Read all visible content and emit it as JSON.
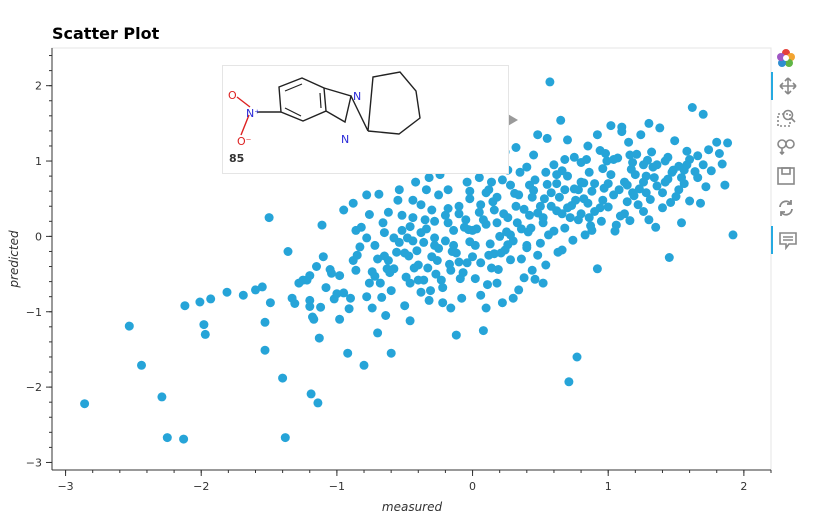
{
  "chart_data": {
    "type": "scatter",
    "title": "Scatter Plot",
    "xlabel": "measured",
    "ylabel": "predicted",
    "xlim": [
      -3.1,
      2.2
    ],
    "ylim": [
      -3.1,
      2.5
    ],
    "x_ticks": [
      -3,
      -2,
      -1,
      0,
      1,
      2
    ],
    "y_ticks": [
      -3,
      -2,
      -1,
      0,
      1,
      2
    ],
    "x_tick_labels": [
      "−3",
      "−2",
      "−1",
      "0",
      "1",
      "2"
    ],
    "y_tick_labels": [
      "−3",
      "−2",
      "−1",
      "0",
      "1",
      "2"
    ],
    "point_color": "#26a4d8",
    "grid": false,
    "points": [
      [
        -2.86,
        -2.22
      ],
      [
        -2.53,
        -1.19
      ],
      [
        -2.44,
        -1.71
      ],
      [
        -2.29,
        -2.13
      ],
      [
        -2.25,
        -2.67
      ],
      [
        -2.13,
        -2.69
      ],
      [
        -2.12,
        -0.92
      ],
      [
        -2.01,
        -0.87
      ],
      [
        -1.98,
        -1.17
      ],
      [
        -1.97,
        -1.3
      ],
      [
        -1.93,
        -0.83
      ],
      [
        -1.81,
        -0.74
      ],
      [
        -1.69,
        -0.78
      ],
      [
        -1.6,
        -0.71
      ],
      [
        -1.55,
        -0.67
      ],
      [
        -1.53,
        -1.14
      ],
      [
        -1.53,
        -1.51
      ],
      [
        -1.5,
        0.25
      ],
      [
        -1.49,
        -0.88
      ],
      [
        -1.4,
        -1.88
      ],
      [
        -1.38,
        -2.67
      ],
      [
        -1.36,
        -0.2
      ],
      [
        -1.33,
        -0.82
      ],
      [
        -1.31,
        -0.89
      ],
      [
        -1.25,
        -0.58
      ],
      [
        -1.22,
        -0.58
      ],
      [
        -1.2,
        -0.93
      ],
      [
        -1.2,
        -0.52
      ],
      [
        -1.19,
        -2.09
      ],
      [
        -1.18,
        -1.07
      ],
      [
        -1.17,
        -1.1
      ],
      [
        -1.15,
        -0.4
      ],
      [
        -1.14,
        -2.21
      ],
      [
        -1.13,
        -1.35
      ],
      [
        -1.12,
        -0.94
      ],
      [
        -1.11,
        0.15
      ],
      [
        -1.1,
        -0.27
      ],
      [
        -1.05,
        -0.44
      ],
      [
        -1.04,
        -0.49
      ],
      [
        -1.02,
        -0.83
      ],
      [
        -1.0,
        -0.76
      ],
      [
        -0.95,
        -0.75
      ],
      [
        -0.91,
        -0.96
      ],
      [
        -0.9,
        -0.82
      ],
      [
        -0.88,
        0.44
      ],
      [
        -0.85,
        -0.25
      ],
      [
        -0.83,
        -0.14
      ],
      [
        -0.8,
        -1.71
      ],
      [
        -0.78,
        -0.8
      ],
      [
        -0.76,
        0.29
      ],
      [
        -0.74,
        -0.47
      ],
      [
        -0.72,
        -0.53
      ],
      [
        -0.7,
        -0.3
      ],
      [
        -0.69,
        0.56
      ],
      [
        -0.67,
        -0.81
      ],
      [
        -0.65,
        -0.26
      ],
      [
        -0.63,
        -0.43
      ],
      [
        -0.61,
        -0.48
      ],
      [
        -0.6,
        -0.72
      ],
      [
        -0.58,
        -0.43
      ],
      [
        -0.56,
        -0.21
      ],
      [
        -0.54,
        -0.08
      ],
      [
        -0.52,
        0.08
      ],
      [
        -0.5,
        -0.22
      ],
      [
        -0.49,
        -0.54
      ],
      [
        -0.47,
        -0.26
      ],
      [
        -0.46,
        0.13
      ],
      [
        -0.44,
        -0.06
      ],
      [
        -0.43,
        -0.42
      ],
      [
        -0.41,
        -0.19
      ],
      [
        -0.4,
        -0.58
      ],
      [
        -0.38,
        -0.74
      ],
      [
        -0.36,
        -0.08
      ],
      [
        -0.35,
        0.22
      ],
      [
        -0.33,
        -0.42
      ],
      [
        -0.31,
        -0.72
      ],
      [
        -0.3,
        -0.27
      ],
      [
        -0.28,
        0.2
      ],
      [
        -0.27,
        -0.5
      ],
      [
        -0.25,
        -0.16
      ],
      [
        -0.23,
        -0.58
      ],
      [
        -0.22,
        -0.88
      ],
      [
        -0.2,
        -0.06
      ],
      [
        -0.18,
        0.37
      ],
      [
        -0.17,
        -0.37
      ],
      [
        -0.15,
        -0.2
      ],
      [
        -0.14,
        0.08
      ],
      [
        -0.12,
        -1.31
      ],
      [
        -0.1,
        -0.34
      ],
      [
        -0.09,
        -0.56
      ],
      [
        -0.07,
        -0.48
      ],
      [
        -0.05,
        0.22
      ],
      [
        -0.03,
        0.09
      ],
      [
        -0.02,
        -0.07
      ],
      [
        0.0,
        -0.27
      ],
      [
        0.02,
        -0.56
      ],
      [
        0.03,
        0.1
      ],
      [
        0.05,
        0.32
      ],
      [
        0.06,
        -0.35
      ],
      [
        0.08,
        -1.25
      ],
      [
        0.1,
        0.16
      ],
      [
        0.11,
        -0.64
      ],
      [
        0.13,
        -0.1
      ],
      [
        0.15,
        0.46
      ],
      [
        0.16,
        -0.23
      ],
      [
        0.18,
        0.18
      ],
      [
        0.19,
        -0.44
      ],
      [
        0.21,
        -0.22
      ],
      [
        0.23,
        0.3
      ],
      [
        0.25,
        0.06
      ],
      [
        0.26,
        -0.11
      ],
      [
        0.28,
        -0.31
      ],
      [
        0.3,
        -0.06
      ],
      [
        0.31,
        0.57
      ],
      [
        0.33,
        0.18
      ],
      [
        0.34,
        -0.71
      ],
      [
        0.36,
        -0.3
      ],
      [
        0.38,
        0.36
      ],
      [
        0.4,
        -0.15
      ],
      [
        0.41,
        0.06
      ],
      [
        0.43,
        0.11
      ],
      [
        0.45,
        0.61
      ],
      [
        0.46,
        -0.57
      ],
      [
        0.48,
        0.31
      ],
      [
        0.5,
        -0.09
      ],
      [
        0.52,
        0.25
      ],
      [
        0.53,
        0.5
      ],
      [
        0.55,
        0.69
      ],
      [
        0.57,
        2.05
      ],
      [
        0.58,
        0.4
      ],
      [
        0.6,
        0.07
      ],
      [
        0.62,
        0.34
      ],
      [
        0.63,
        -0.21
      ],
      [
        0.65,
        1.54
      ],
      [
        0.66,
        0.87
      ],
      [
        0.68,
        0.11
      ],
      [
        0.7,
        0.38
      ],
      [
        0.71,
        -1.93
      ],
      [
        0.73,
        0.41
      ],
      [
        0.75,
        0.63
      ],
      [
        0.77,
        -1.6
      ],
      [
        0.78,
        0.22
      ],
      [
        0.8,
        0.98
      ],
      [
        0.82,
        0.71
      ],
      [
        0.83,
        0.02
      ],
      [
        0.85,
        0.44
      ],
      [
        0.87,
        0.14
      ],
      [
        0.88,
        0.6
      ],
      [
        0.9,
        0.33
      ],
      [
        0.92,
        -0.43
      ],
      [
        0.94,
        1.14
      ],
      [
        0.95,
        0.2
      ],
      [
        0.97,
        0.64
      ],
      [
        0.99,
        1.0
      ],
      [
        1.0,
        0.39
      ],
      [
        1.02,
        1.47
      ],
      [
        1.04,
        0.55
      ],
      [
        1.05,
        0.07
      ],
      [
        1.07,
        1.04
      ],
      [
        1.09,
        0.27
      ],
      [
        1.1,
        1.39
      ],
      [
        1.12,
        0.72
      ],
      [
        1.14,
        0.46
      ],
      [
        1.16,
        0.21
      ],
      [
        1.17,
        0.89
      ],
      [
        1.19,
        0.54
      ],
      [
        1.21,
        1.09
      ],
      [
        1.23,
        0.63
      ],
      [
        1.24,
        1.35
      ],
      [
        1.26,
        0.33
      ],
      [
        1.28,
        0.8
      ],
      [
        1.29,
        1.01
      ],
      [
        1.31,
        0.49
      ],
      [
        1.33,
        0.92
      ],
      [
        1.35,
        0.12
      ],
      [
        1.36,
        0.67
      ],
      [
        1.38,
        1.44
      ],
      [
        1.4,
        0.58
      ],
      [
        1.42,
        1.0
      ],
      [
        1.44,
        0.76
      ],
      [
        1.45,
        -0.28
      ],
      [
        1.47,
        0.85
      ],
      [
        1.49,
        1.27
      ],
      [
        1.5,
        0.53
      ],
      [
        1.52,
        0.93
      ],
      [
        1.54,
        0.18
      ],
      [
        1.56,
        0.7
      ],
      [
        1.58,
        1.13
      ],
      [
        1.6,
        0.47
      ],
      [
        1.62,
        1.71
      ],
      [
        1.64,
        0.86
      ],
      [
        1.66,
        1.07
      ],
      [
        1.68,
        0.44
      ],
      [
        1.7,
        1.62
      ],
      [
        1.72,
        0.66
      ],
      [
        1.76,
        0.87
      ],
      [
        1.8,
        1.25
      ],
      [
        1.84,
        0.96
      ],
      [
        1.88,
        1.24
      ],
      [
        1.92,
        0.02
      ],
      [
        -0.95,
        0.35
      ],
      [
        -0.82,
        0.12
      ],
      [
        -0.65,
        0.05
      ],
      [
        -0.55,
        0.48
      ],
      [
        -0.42,
        0.72
      ],
      [
        -0.25,
        0.55
      ],
      [
        -0.1,
        0.4
      ],
      [
        0.05,
        0.78
      ],
      [
        0.15,
        0.95
      ],
      [
        0.35,
        0.85
      ],
      [
        0.45,
        1.08
      ],
      [
        0.55,
        1.3
      ],
      [
        0.75,
        1.05
      ],
      [
        0.85,
        1.2
      ],
      [
        1.15,
        1.25
      ],
      [
        1.3,
        1.5
      ],
      [
        -0.38,
        0.42
      ],
      [
        -0.28,
        -0.02
      ],
      [
        -0.18,
        0.18
      ],
      [
        -0.02,
        0.5
      ],
      [
        0.12,
        0.62
      ],
      [
        0.22,
        0.75
      ],
      [
        0.4,
        0.92
      ],
      [
        0.6,
        0.95
      ],
      [
        0.68,
        0.62
      ],
      [
        0.86,
        0.85
      ],
      [
        1.02,
        0.82
      ],
      [
        1.18,
        0.98
      ],
      [
        1.36,
        0.95
      ],
      [
        1.46,
        0.45
      ],
      [
        1.56,
        0.88
      ],
      [
        1.66,
        0.78
      ],
      [
        -0.48,
        -0.02
      ],
      [
        -0.34,
        0.1
      ],
      [
        -0.2,
        0.28
      ],
      [
        -0.06,
        0.12
      ],
      [
        0.08,
        0.22
      ],
      [
        0.2,
        0.0
      ],
      [
        0.32,
        0.4
      ],
      [
        0.44,
        0.52
      ],
      [
        0.52,
        0.18
      ],
      [
        0.64,
        0.52
      ],
      [
        0.72,
        0.25
      ],
      [
        0.9,
        0.7
      ],
      [
        1.08,
        0.62
      ],
      [
        1.22,
        0.42
      ],
      [
        1.34,
        0.78
      ],
      [
        1.52,
        0.62
      ],
      [
        -0.72,
        -0.12
      ],
      [
        -0.62,
        0.32
      ],
      [
        -0.44,
        0.25
      ],
      [
        -0.3,
        0.35
      ],
      [
        -0.14,
        -0.12
      ],
      [
        0.0,
        0.08
      ],
      [
        0.16,
        0.35
      ],
      [
        0.28,
        0.02
      ],
      [
        0.42,
        0.28
      ],
      [
        0.58,
        0.58
      ],
      [
        0.7,
        0.8
      ],
      [
        0.82,
        0.5
      ],
      [
        0.96,
        0.48
      ],
      [
        1.12,
        0.3
      ],
      [
        1.26,
        0.72
      ],
      [
        1.4,
        0.38
      ],
      [
        -0.86,
        -0.45
      ],
      [
        -0.78,
        -0.02
      ],
      [
        -0.68,
        -0.62
      ],
      [
        -0.58,
        -0.02
      ],
      [
        -0.4,
        -0.38
      ],
      [
        -0.26,
        -0.32
      ],
      [
        -0.12,
        -0.22
      ],
      [
        0.02,
        -0.12
      ],
      [
        0.14,
        -0.42
      ],
      [
        0.26,
        0.25
      ],
      [
        0.36,
        0.1
      ],
      [
        0.48,
        -0.25
      ],
      [
        0.62,
        0.7
      ],
      [
        0.76,
        0.48
      ],
      [
        0.88,
        0.08
      ],
      [
        1.0,
        0.7
      ],
      [
        -0.98,
        -0.52
      ],
      [
        -0.88,
        -0.32
      ],
      [
        -0.74,
        -0.95
      ],
      [
        -0.64,
        -1.05
      ],
      [
        -0.5,
        -0.92
      ],
      [
        -0.36,
        -0.58
      ],
      [
        -0.22,
        -0.68
      ],
      [
        -0.08,
        -0.82
      ],
      [
        0.06,
        -0.78
      ],
      [
        0.18,
        -0.62
      ],
      [
        0.3,
        -0.82
      ],
      [
        0.44,
        -0.45
      ],
      [
        0.54,
        -0.38
      ],
      [
        0.66,
        -0.18
      ],
      [
        0.8,
        0.3
      ],
      [
        0.94,
        0.38
      ],
      [
        -1.28,
        -0.62
      ],
      [
        -1.08,
        -0.68
      ],
      [
        -0.92,
        -1.55
      ],
      [
        -0.7,
        -1.28
      ],
      [
        -0.46,
        -1.12
      ],
      [
        -0.32,
        -0.85
      ],
      [
        -0.16,
        -0.95
      ],
      [
        0.1,
        -0.95
      ],
      [
        0.22,
        -0.88
      ],
      [
        0.38,
        -0.55
      ],
      [
        0.52,
        -0.62
      ],
      [
        -0.6,
        -1.55
      ],
      [
        -0.98,
        -1.1
      ],
      [
        -1.2,
        -0.85
      ],
      [
        -0.54,
        0.62
      ],
      [
        -0.42,
        0.98
      ],
      [
        -0.2,
        1.05
      ],
      [
        0.02,
        0.98
      ],
      [
        0.24,
        1.12
      ],
      [
        0.32,
        1.18
      ],
      [
        0.48,
        1.35
      ],
      [
        0.7,
        1.28
      ],
      [
        0.92,
        1.35
      ],
      [
        1.1,
        1.45
      ],
      [
        -0.34,
        0.62
      ],
      [
        -0.24,
        0.82
      ],
      [
        -0.04,
        0.72
      ],
      [
        0.1,
        0.58
      ],
      [
        0.28,
        0.68
      ],
      [
        0.46,
        0.75
      ],
      [
        0.62,
        0.82
      ],
      [
        0.8,
        0.72
      ],
      [
        1.04,
        1.02
      ],
      [
        1.2,
        0.82
      ],
      [
        1.32,
        1.12
      ],
      [
        1.44,
        1.05
      ],
      [
        1.58,
        0.95
      ],
      [
        1.7,
        0.95
      ],
      [
        1.82,
        1.1
      ],
      [
        1.86,
        0.68
      ],
      [
        -0.78,
        0.55
      ],
      [
        -0.66,
        0.18
      ],
      [
        -0.52,
        0.28
      ],
      [
        -0.38,
        0.05
      ],
      [
        -0.1,
        0.3
      ],
      [
        0.06,
        0.42
      ],
      [
        0.18,
        0.52
      ],
      [
        0.34,
        0.55
      ],
      [
        0.5,
        0.4
      ],
      [
        0.66,
        0.3
      ],
      [
        0.78,
        0.62
      ],
      [
        0.96,
        0.9
      ],
      [
        1.14,
        0.68
      ],
      [
        1.28,
        0.58
      ],
      [
        1.42,
        0.72
      ],
      [
        1.54,
        0.78
      ],
      [
        -0.62,
        -0.32
      ],
      [
        -0.46,
        -0.62
      ],
      [
        -0.28,
        -0.12
      ],
      [
        -0.16,
        -0.45
      ],
      [
        -0.04,
        -0.35
      ],
      [
        0.12,
        -0.25
      ],
      [
        0.24,
        -0.18
      ],
      [
        0.4,
        -0.12
      ],
      [
        0.56,
        0.02
      ],
      [
        0.74,
        -0.05
      ],
      [
        0.86,
        0.25
      ],
      [
        1.06,
        0.15
      ],
      [
        1.18,
        0.58
      ],
      [
        1.3,
        0.22
      ],
      [
        -0.86,
        0.08
      ],
      [
        -0.76,
        -0.62
      ],
      [
        -0.44,
        0.48
      ],
      [
        -0.32,
        0.78
      ],
      [
        -0.18,
        0.62
      ],
      [
        -0.02,
        0.6
      ],
      [
        0.14,
        0.72
      ],
      [
        0.26,
        0.88
      ],
      [
        0.42,
        0.68
      ],
      [
        0.54,
        0.85
      ],
      [
        0.68,
        1.02
      ],
      [
        0.84,
        1.02
      ],
      [
        0.98,
        1.1
      ],
      [
        1.16,
        1.08
      ],
      [
        1.26,
        0.95
      ],
      [
        1.48,
        0.88
      ],
      [
        1.6,
        1.02
      ],
      [
        1.74,
        1.15
      ]
    ],
    "hover": {
      "label": "85"
    }
  }
}
